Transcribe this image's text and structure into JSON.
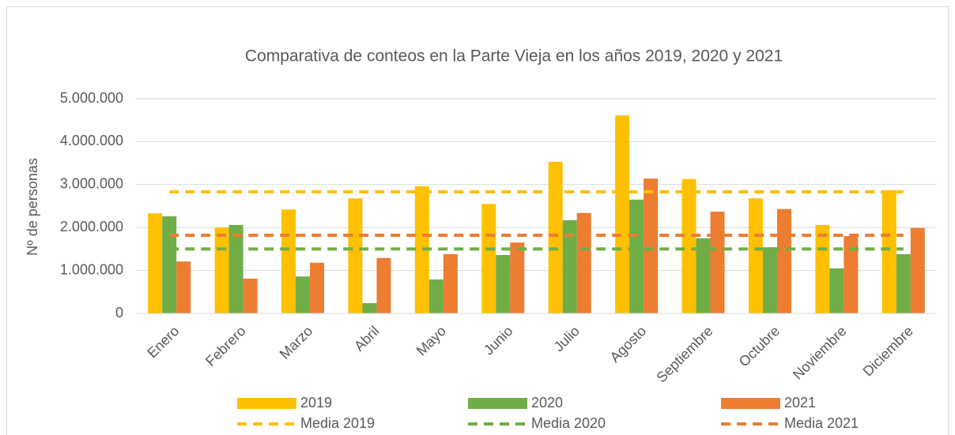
{
  "chart_data": {
    "type": "bar",
    "title": "Comparativa de conteos en la Parte Vieja en los años 2019, 2020 y 2021",
    "y_label": "Nº de personas",
    "categories": [
      "Enero",
      "Febrero",
      "Marzo",
      "Abril",
      "Mayo",
      "Junio",
      "Julio",
      "Agosto",
      "Septiembre",
      "Octubre",
      "Noviembre",
      "Diciembre"
    ],
    "series": [
      {
        "name": "2019",
        "type": "bar",
        "color": "#ffc000",
        "values": [
          2330000,
          2000000,
          2420000,
          2680000,
          2960000,
          2550000,
          3530000,
          4610000,
          3130000,
          2680000,
          2060000,
          2870000
        ]
      },
      {
        "name": "2020",
        "type": "bar",
        "color": "#70ad47",
        "values": [
          2260000,
          2060000,
          860000,
          240000,
          790000,
          1360000,
          2170000,
          2650000,
          1750000,
          1540000,
          1050000,
          1380000
        ]
      },
      {
        "name": "2021",
        "type": "bar",
        "color": "#ed7d31",
        "values": [
          1210000,
          810000,
          1180000,
          1290000,
          1380000,
          1650000,
          2340000,
          3140000,
          2370000,
          2430000,
          1800000,
          1990000
        ]
      },
      {
        "name": "Media 2019",
        "type": "line",
        "color": "#ffc000",
        "values": [
          2830000,
          2830000,
          2830000,
          2830000,
          2830000,
          2830000,
          2830000,
          2830000,
          2830000,
          2830000,
          2830000,
          2830000
        ]
      },
      {
        "name": "Media 2020",
        "type": "line",
        "color": "#70ad47",
        "values": [
          1500000,
          1500000,
          1500000,
          1500000,
          1500000,
          1500000,
          1500000,
          1500000,
          1500000,
          1500000,
          1500000,
          1500000
        ]
      },
      {
        "name": "Media 2021",
        "type": "line",
        "color": "#ed7d31",
        "values": [
          1820000,
          1820000,
          1820000,
          1820000,
          1820000,
          1820000,
          1820000,
          1820000,
          1820000,
          1820000,
          1820000,
          1820000
        ]
      }
    ],
    "ylim": [
      0,
      5000000
    ],
    "yticks": [
      0,
      {
        "value": 1000000,
        "label": "1.000.000"
      },
      {
        "value": 2000000,
        "label": "2.000.000"
      },
      {
        "value": 3000000,
        "label": "3.000.000"
      },
      {
        "value": 4000000,
        "label": "4.000.000"
      },
      {
        "value": 5000000,
        "label": "5.000.000"
      }
    ],
    "grid": true,
    "legend": "bottom"
  }
}
